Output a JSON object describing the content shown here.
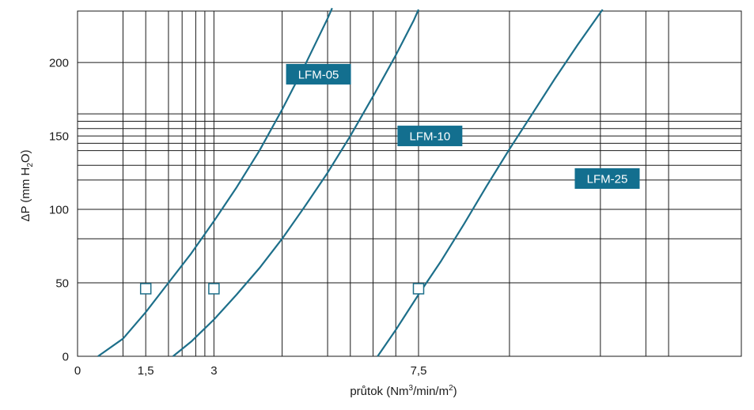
{
  "chart_data": {
    "type": "line",
    "title": "",
    "xlabel": {
      "pre": "průtok (Nm",
      "sup1": "3",
      "mid": "/min/m",
      "sup2": "2",
      "post": ")"
    },
    "ylabel": {
      "pre": "ΔP (mm H",
      "sub": "2",
      "post": "O)"
    },
    "xlim": [
      0,
      14.6
    ],
    "ylim": [
      0,
      235
    ],
    "x_tick_labels": [
      {
        "value": 0,
        "label": "0"
      },
      {
        "value": 1.5,
        "label": "1,5"
      },
      {
        "value": 3,
        "label": "3"
      },
      {
        "value": 7.5,
        "label": "7,5"
      }
    ],
    "y_ticks": [
      0,
      50,
      100,
      150,
      200
    ],
    "grid": true,
    "x_gridlines": [
      1,
      1.5,
      2,
      2.3,
      2.6,
      2.8,
      3,
      4.5,
      5.5,
      6,
      6.5,
      7,
      7.5,
      9.5,
      11.5,
      12.5,
      13
    ],
    "y_gridlines": [
      0,
      50,
      80,
      100,
      120,
      130,
      140,
      145,
      150,
      155,
      160,
      165,
      200,
      235
    ],
    "colors": {
      "curve": "#1d6f8a",
      "label_bg": "#136f8f",
      "label_text": "#ffffff",
      "grid": "#1a1a1a"
    },
    "series": [
      {
        "name": "LFM-05",
        "points": [
          [
            0.45,
            0
          ],
          [
            1.0,
            12
          ],
          [
            1.5,
            30
          ],
          [
            2.0,
            50
          ],
          [
            2.5,
            70
          ],
          [
            3.0,
            92
          ],
          [
            3.5,
            115
          ],
          [
            4.0,
            140
          ],
          [
            4.5,
            168
          ],
          [
            5.0,
            198
          ],
          [
            5.5,
            230
          ],
          [
            5.6,
            237
          ]
        ]
      },
      {
        "name": "LFM-10",
        "points": [
          [
            2.1,
            0
          ],
          [
            2.5,
            10
          ],
          [
            3.0,
            25
          ],
          [
            3.5,
            42
          ],
          [
            4.0,
            60
          ],
          [
            4.5,
            80
          ],
          [
            5.0,
            102
          ],
          [
            5.5,
            125
          ],
          [
            6.0,
            150
          ],
          [
            6.5,
            177
          ],
          [
            7.0,
            205
          ],
          [
            7.4,
            229
          ],
          [
            7.5,
            236
          ]
        ]
      },
      {
        "name": "LFM-25",
        "points": [
          [
            6.6,
            0
          ],
          [
            7.0,
            18
          ],
          [
            7.5,
            42
          ],
          [
            8.0,
            65
          ],
          [
            8.5,
            90
          ],
          [
            9.0,
            116
          ],
          [
            9.5,
            141
          ],
          [
            10.0,
            165
          ],
          [
            10.5,
            189
          ],
          [
            11.0,
            212
          ],
          [
            11.5,
            234
          ],
          [
            11.55,
            236
          ]
        ]
      }
    ],
    "markers": [
      {
        "x": 1.5,
        "y": 46
      },
      {
        "x": 3,
        "y": 46
      },
      {
        "x": 7.5,
        "y": 46
      }
    ],
    "annotations": [
      {
        "text": "LFM-05",
        "x": 5.3,
        "y": 192
      },
      {
        "text": "LFM-10",
        "x": 7.75,
        "y": 150
      },
      {
        "text": "LFM-25",
        "x": 11.65,
        "y": 121
      }
    ]
  }
}
